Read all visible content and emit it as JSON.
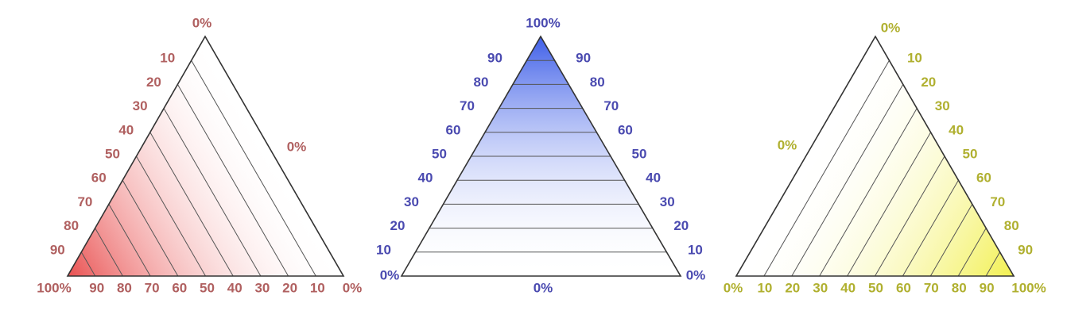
{
  "diagrams": [
    {
      "id": "red",
      "color": "#b06060",
      "gradient_color": "#e84848",
      "gradient_corner": "bottom-left",
      "label_zero_top": "0%",
      "label_zero_side": "0%",
      "left_edge_ticks": [
        "10",
        "20",
        "30",
        "40",
        "50",
        "60",
        "70",
        "80",
        "90"
      ],
      "bottom_ticks": [
        "100%",
        "90",
        "80",
        "70",
        "60",
        "50",
        "40",
        "30",
        "20",
        "10",
        "0%"
      ]
    },
    {
      "id": "blue",
      "color": "#4a4ab0",
      "gradient_color": "#4a6ae8",
      "gradient_corner": "top",
      "label_top": "100%",
      "label_bottom_center": "0%",
      "label_bottom_left": "0%",
      "label_bottom_right": "0%",
      "left_ticks": [
        "90",
        "80",
        "70",
        "60",
        "50",
        "40",
        "30",
        "20",
        "10"
      ],
      "right_ticks": [
        "90",
        "80",
        "70",
        "60",
        "50",
        "40",
        "30",
        "20",
        "10"
      ]
    },
    {
      "id": "yellow",
      "color": "#b0b030",
      "gradient_color": "#f0f050",
      "gradient_corner": "bottom-right",
      "label_zero_top": "0%",
      "label_zero_side": "0%",
      "right_edge_ticks": [
        "10",
        "20",
        "30",
        "40",
        "50",
        "60",
        "70",
        "80",
        "90"
      ],
      "bottom_ticks": [
        "0%",
        "10",
        "20",
        "30",
        "40",
        "50",
        "60",
        "70",
        "80",
        "90",
        "100%"
      ]
    }
  ]
}
